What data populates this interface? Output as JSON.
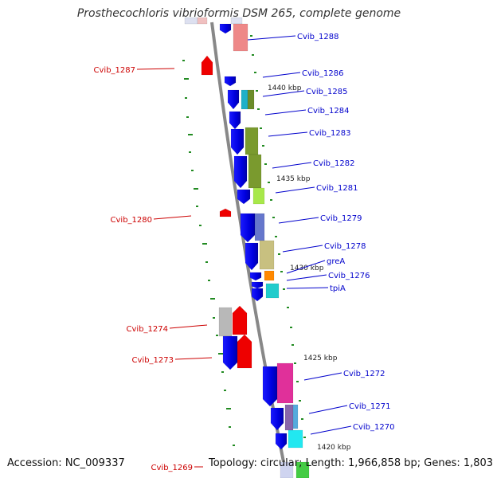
{
  "title": "Prosthecochloris vibrioformis DSM 265, complete genome",
  "accession": "Accession: NC_009337",
  "topology": "Topology: circular; Length: 1,966,858 bp; Genes: 1,803",
  "colors": {
    "cds_blue": "#0000ee",
    "reverse_red": "#ee0000",
    "label_blue": "#0000cc",
    "label_red": "#cc0000",
    "backbone": "#888888",
    "tick_green": "#228b22"
  },
  "kbp_markers": [
    "1440 kbp",
    "1435 kbp",
    "1430 kbp",
    "1425 kbp",
    "1420 kbp"
  ],
  "genes_right": [
    "Cvib_1288",
    "Cvib_1286",
    "Cvib_1285",
    "Cvib_1284",
    "Cvib_1283",
    "Cvib_1282",
    "Cvib_1281",
    "Cvib_1279",
    "Cvib_1278",
    "greA",
    "Cvib_1276",
    "tpiA",
    "Cvib_1272",
    "Cvib_1271",
    "Cvib_1270"
  ],
  "genes_left": [
    "Cvib_1287",
    "Cvib_1280",
    "Cvib_1274",
    "Cvib_1273",
    "Cvib_1269"
  ],
  "feature_colors": [
    "#ee8888",
    "#1fb0c8",
    "#6b8c2a",
    "#7a9a2e",
    "#a8e84a",
    "#6677cc",
    "#c8c080",
    "#ff8800",
    "#22cccc",
    "#b8b8b8",
    "#e0309a",
    "#8866aa",
    "#22e8f0",
    "#44cc44"
  ]
}
